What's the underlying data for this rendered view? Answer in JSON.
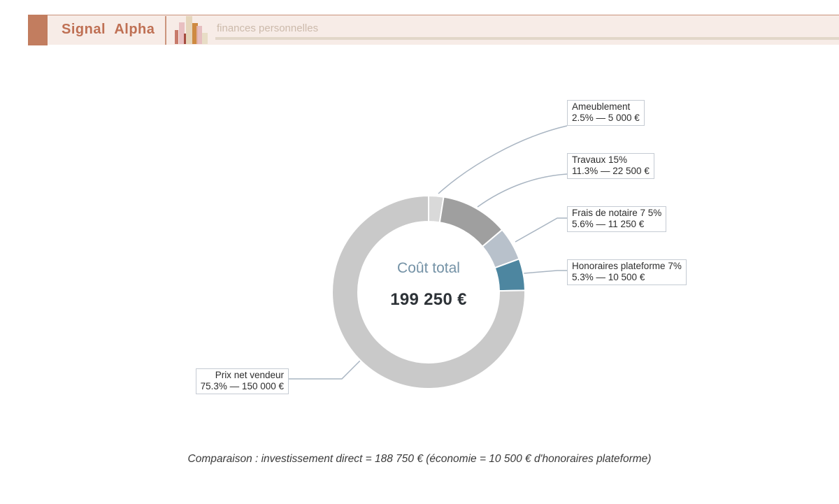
{
  "header": {
    "brand": "Signal Alpha",
    "subtitle": "finances personnelles"
  },
  "chart": {
    "center_label": "Coût total",
    "center_value": "199 250 €"
  },
  "labels": [
    {
      "line1": "Ameublement",
      "line2": "2.5% — 5 000 €"
    },
    {
      "line1": "Travaux 15%",
      "line2": "11.3% — 22 500 €"
    },
    {
      "line1": "Frais de notaire 7 5%",
      "line2": "5.6% — 11 250 €"
    },
    {
      "line1": "Honoraires plateforme 7%",
      "line2": "5.3% — 10 500 €"
    },
    {
      "line1": "Prix net vendeur",
      "line2": "75.3% — 150 000 €"
    }
  ],
  "footnote": "Comparaison : investissement direct = 188 750 € (économie = 10 500 € d'honoraires plateforme)",
  "chart_data": {
    "type": "pie",
    "subtype": "donut",
    "title": "Coût total",
    "center_value_text": "199 250 €",
    "total_value_eur": 199250,
    "start_angle_deg": 0,
    "direction": "clockwise",
    "slices": [
      {
        "label": "Ameublement",
        "percent": 2.5,
        "value_eur": 5000,
        "color": "#d9d9d9"
      },
      {
        "label": "Travaux 15%",
        "percent": 11.3,
        "value_eur": 22500,
        "color": "#9f9f9f"
      },
      {
        "label": "Frais de notaire 7 5%",
        "percent": 5.6,
        "value_eur": 11250,
        "color": "#b8c1cb"
      },
      {
        "label": "Honoraires plateforme 7%",
        "percent": 5.3,
        "value_eur": 10500,
        "color": "#4d86a0"
      },
      {
        "label": "Prix net vendeur",
        "percent": 75.3,
        "value_eur": 150000,
        "color": "#c9c9c9"
      }
    ],
    "annotation": "Comparaison : investissement direct = 188 750 € (économie = 10 500 € d'honoraires plateforme)",
    "legend_position": "callout-labels",
    "comparison": {
      "investissement_direct_eur": 188750,
      "economie_eur": 10500
    }
  },
  "colors": {
    "brand_accent": "#c27d5f",
    "header_bg": "#f7ece7",
    "callout_line": "#a9b5c2",
    "center_label": "#7492a6",
    "teal_slice": "#4d86a0"
  }
}
